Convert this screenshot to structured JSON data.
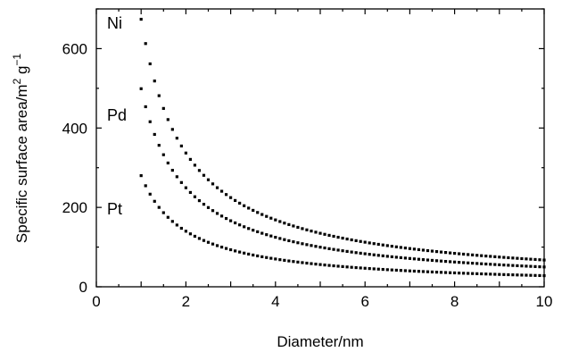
{
  "chart_data": {
    "type": "scatter",
    "xlabel": "Diameter/nm",
    "ylabel_parts": {
      "base": "Specific surface area/m",
      "sup1": "2",
      "mid": " g",
      "sup2": "−1"
    },
    "xlim": [
      0,
      10
    ],
    "ylim": [
      0,
      700
    ],
    "x_ticks": [
      "0",
      "2",
      "4",
      "6",
      "8",
      "10"
    ],
    "y_ticks": [
      "0",
      "200",
      "400",
      "600"
    ],
    "grid": false,
    "x_range": [
      1.0,
      10.0
    ],
    "x_step": 0.1,
    "series": [
      {
        "name": "Ni",
        "formula": "k/d",
        "k": 674
      },
      {
        "name": "Pd",
        "formula": "k/d",
        "k": 499
      },
      {
        "name": "Pt",
        "formula": "k/d",
        "k": 280
      }
    ]
  }
}
